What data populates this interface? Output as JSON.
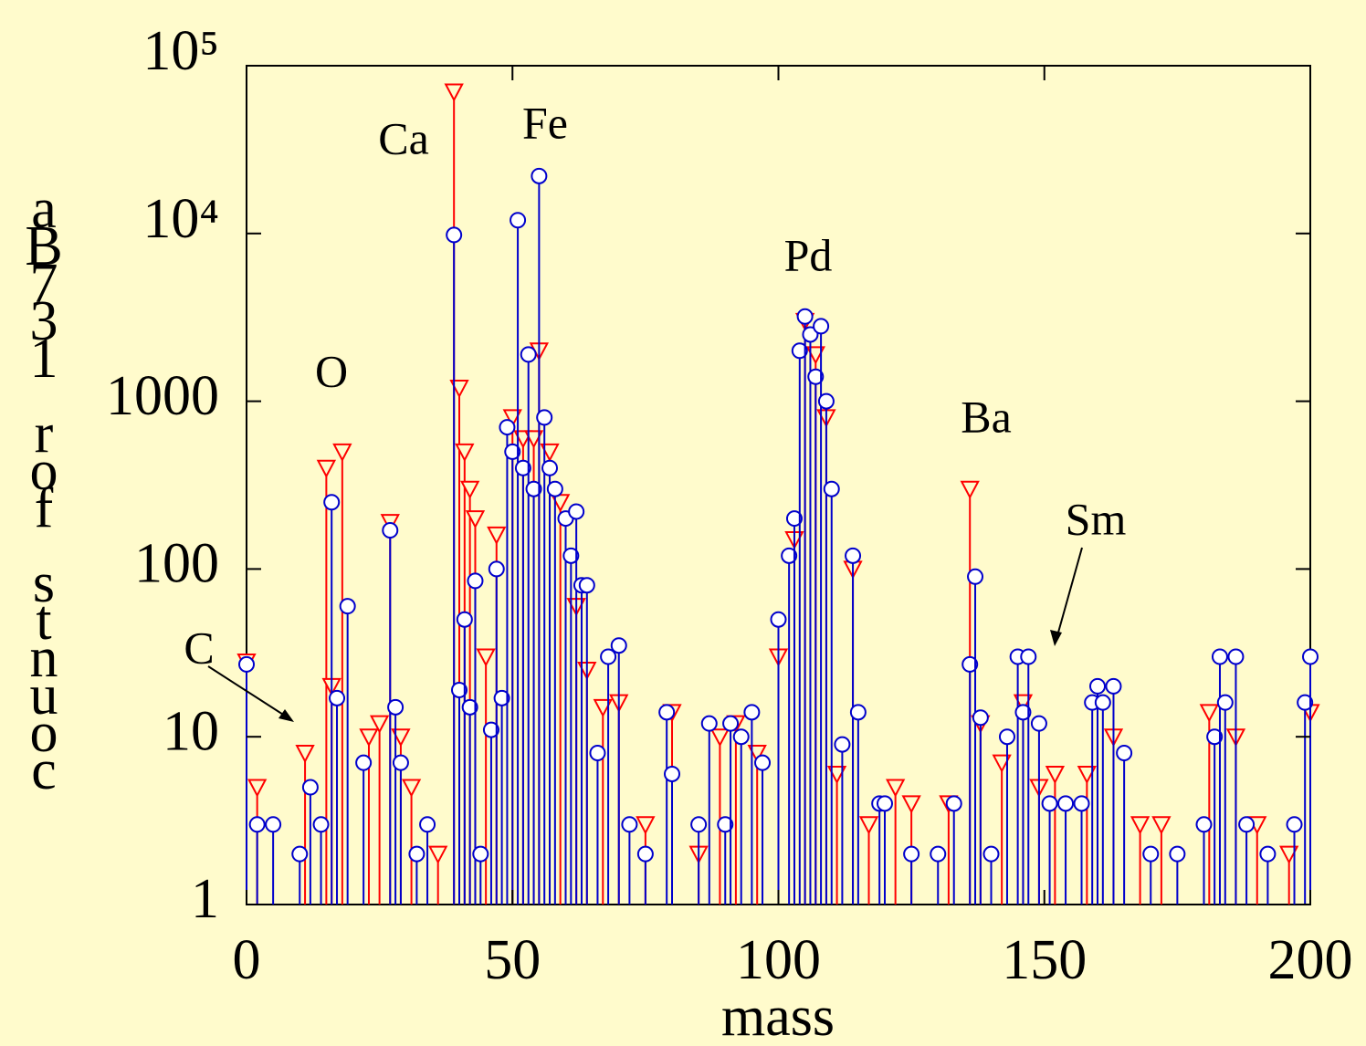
{
  "chart_data": {
    "type": "stem",
    "xlabel": "mass",
    "ylabel": "counts for 137Ba",
    "xlim": [
      0,
      200
    ],
    "xticks": [
      0,
      50,
      100,
      150,
      200
    ],
    "ylim": [
      1,
      100000
    ],
    "yscale": "log",
    "yticks": [
      1,
      10,
      100,
      1000,
      {
        "value": 10000,
        "label": "10⁴"
      },
      {
        "value": 100000,
        "label": "10⁵"
      }
    ],
    "annotations": [
      "C",
      "O",
      "Ca",
      "Fe",
      "Pd",
      "Ba",
      "Sm"
    ],
    "series": [
      {
        "color": "#ff0000",
        "marker": "triangle-down",
        "x": [
          0,
          2,
          11,
          15,
          16,
          18,
          23,
          25,
          27,
          29,
          31,
          36,
          39,
          40,
          41,
          42,
          43,
          45,
          47,
          50,
          52,
          54,
          55,
          57,
          59,
          62,
          64,
          67,
          70,
          75,
          80,
          85,
          89,
          92,
          96,
          100,
          103,
          105,
          107,
          109,
          111,
          114,
          117,
          122,
          125,
          132,
          136,
          138,
          142,
          146,
          149,
          152,
          158,
          163,
          168,
          172,
          181,
          186,
          190,
          196,
          200
        ],
        "values": [
          28,
          5,
          8,
          400,
          20,
          500,
          10,
          12,
          190,
          10,
          5,
          2,
          70000,
          1200,
          500,
          300,
          200,
          30,
          160,
          800,
          600,
          600,
          2000,
          500,
          250,
          60,
          25,
          15,
          16,
          3,
          14,
          2,
          10,
          12,
          8,
          30,
          150,
          3000,
          1900,
          800,
          6,
          100,
          3,
          5,
          4,
          4,
          300,
          12,
          7,
          16,
          5,
          6,
          6,
          10,
          3,
          3,
          14,
          10,
          3,
          2,
          14
        ]
      },
      {
        "color": "#0000cc",
        "marker": "circle",
        "x": [
          0,
          2,
          5,
          10,
          12,
          14,
          16,
          17,
          19,
          22,
          27,
          28,
          29,
          32,
          34,
          39,
          40,
          41,
          42,
          43,
          44,
          46,
          47,
          48,
          49,
          50,
          51,
          52,
          53,
          54,
          55,
          56,
          57,
          58,
          60,
          61,
          62,
          63,
          64,
          66,
          68,
          70,
          72,
          75,
          79,
          80,
          85,
          87,
          90,
          91,
          93,
          95,
          97,
          100,
          102,
          103,
          104,
          105,
          106,
          107,
          108,
          109,
          110,
          112,
          114,
          115,
          119,
          120,
          125,
          130,
          133,
          136,
          137,
          138,
          140,
          143,
          145,
          146,
          147,
          149,
          151,
          154,
          157,
          159,
          160,
          161,
          163,
          165,
          170,
          175,
          180,
          182,
          183,
          184,
          186,
          188,
          192,
          197,
          199,
          200
        ],
        "values": [
          27,
          3,
          3,
          2,
          5,
          3,
          250,
          17,
          60,
          7,
          170,
          15,
          7,
          2,
          3,
          9800,
          19,
          50,
          15,
          85,
          2,
          11,
          100,
          17,
          700,
          500,
          12000,
          400,
          1900,
          300,
          22000,
          800,
          400,
          300,
          200,
          120,
          220,
          80,
          80,
          8,
          30,
          35,
          3,
          2,
          14,
          6,
          3,
          12,
          3,
          12,
          10,
          14,
          7,
          50,
          120,
          200,
          2000,
          3200,
          2500,
          1400,
          2800,
          1000,
          300,
          9,
          120,
          14,
          4,
          4,
          2,
          2,
          4,
          27,
          90,
          13,
          2,
          10,
          30,
          14,
          30,
          12,
          4,
          4,
          4,
          16,
          20,
          16,
          20,
          8,
          2,
          2,
          3,
          10,
          30,
          16,
          30,
          3,
          2,
          3,
          16,
          30
        ]
      }
    ]
  }
}
